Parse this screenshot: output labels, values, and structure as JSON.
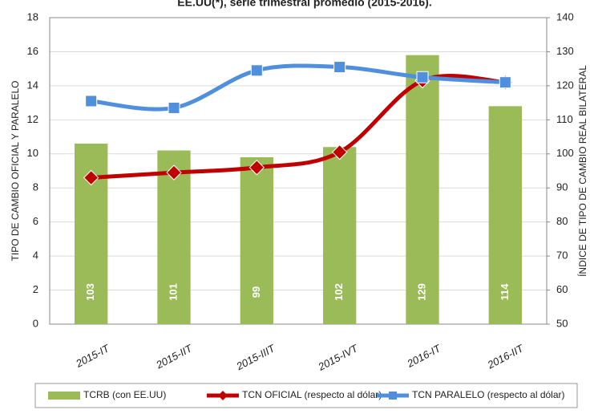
{
  "chart_data": {
    "type": "bar",
    "title": "EE.UU(*), serie trimestral promedio (2015-2016).",
    "y_label": "TIPO DE CAMBIO OFICIAL Y PARALELO",
    "y2_label": "ÍNDICE DE TIPO DE CAMBIO REAL BILATERAL",
    "categories": [
      "2015-IT",
      "2015-IIT",
      "2015-IIIT",
      "2015-IVT",
      "2016-IT",
      "2016-IIT"
    ],
    "series": [
      {
        "name": "TCRB (con EE.UU)",
        "type": "bar",
        "axis": "y2",
        "color": "#9bbb59",
        "values": [
          103,
          101,
          99,
          102,
          129,
          114
        ]
      },
      {
        "name": "TCN OFICIAL (respecto al dólar)",
        "type": "line",
        "marker": "diamond",
        "color": "#c00000",
        "values": [
          8.6,
          8.9,
          9.2,
          10.1,
          14.3,
          14.2
        ]
      },
      {
        "name": "TCN PARALELO (respecto al dólar)",
        "type": "line",
        "marker": "square",
        "color": "#4f8fde",
        "values": [
          13.1,
          12.7,
          14.9,
          15.1,
          14.5,
          14.2
        ]
      }
    ],
    "ylim": [
      0,
      18
    ],
    "yticks": [
      0,
      2,
      4,
      6,
      8,
      10,
      12,
      14,
      16,
      18
    ],
    "y2lim": [
      50,
      140
    ],
    "y2ticks": [
      50,
      60,
      70,
      80,
      90,
      100,
      110,
      120,
      130,
      140
    ],
    "grid": true
  }
}
